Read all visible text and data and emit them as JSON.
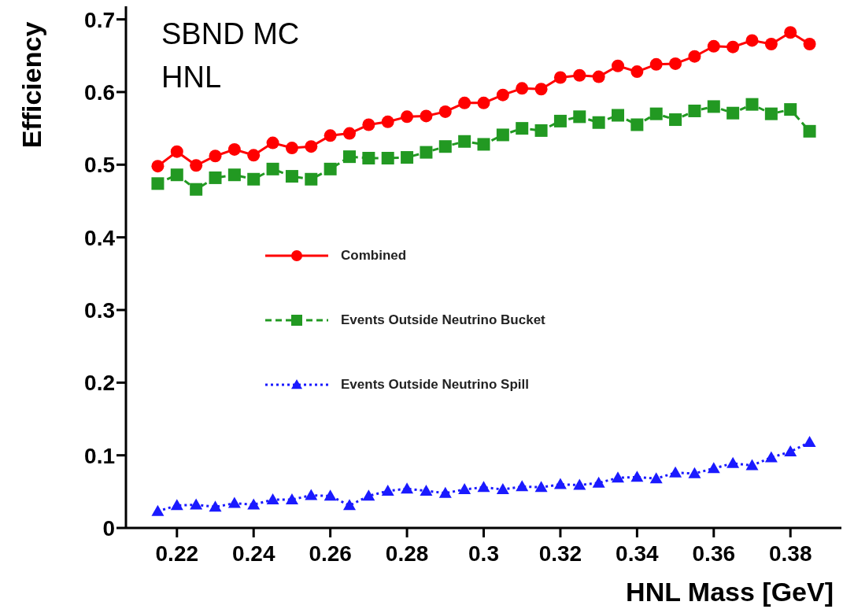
{
  "chart_data": {
    "type": "line",
    "xlabel": "HNL Mass [GeV]",
    "ylabel": "Efficiency",
    "annotations": [
      "SBND MC",
      "HNL"
    ],
    "x": [
      0.215,
      0.22,
      0.225,
      0.23,
      0.235,
      0.24,
      0.245,
      0.25,
      0.255,
      0.26,
      0.265,
      0.27,
      0.275,
      0.28,
      0.285,
      0.29,
      0.295,
      0.3,
      0.305,
      0.31,
      0.315,
      0.32,
      0.325,
      0.33,
      0.335,
      0.34,
      0.345,
      0.35,
      0.355,
      0.36,
      0.365,
      0.37,
      0.375,
      0.38,
      0.385
    ],
    "series": [
      {
        "name": "Combined",
        "color": "#ff0000",
        "marker": "circle",
        "line_style": "solid",
        "values": [
          0.498,
          0.518,
          0.499,
          0.512,
          0.521,
          0.513,
          0.53,
          0.523,
          0.525,
          0.54,
          0.543,
          0.555,
          0.559,
          0.566,
          0.567,
          0.573,
          0.585,
          0.585,
          0.596,
          0.605,
          0.604,
          0.62,
          0.623,
          0.621,
          0.636,
          0.628,
          0.638,
          0.639,
          0.649,
          0.663,
          0.662,
          0.671,
          0.666,
          0.682,
          0.666
        ]
      },
      {
        "name": "Events Outside Neutrino Bucket",
        "color": "#229922",
        "marker": "square",
        "line_style": "dashed",
        "values": [
          0.474,
          0.486,
          0.466,
          0.482,
          0.486,
          0.48,
          0.494,
          0.484,
          0.48,
          0.494,
          0.511,
          0.509,
          0.509,
          0.51,
          0.517,
          0.525,
          0.532,
          0.528,
          0.541,
          0.55,
          0.547,
          0.56,
          0.566,
          0.558,
          0.568,
          0.555,
          0.57,
          0.562,
          0.574,
          0.58,
          0.571,
          0.583,
          0.57,
          0.576,
          0.546
        ]
      },
      {
        "name": "Events Outside Neutrino Spill",
        "color": "#1a1aff",
        "marker": "triangle",
        "line_style": "dotted",
        "values": [
          0.023,
          0.031,
          0.032,
          0.029,
          0.034,
          0.032,
          0.039,
          0.039,
          0.045,
          0.044,
          0.031,
          0.044,
          0.051,
          0.054,
          0.051,
          0.048,
          0.053,
          0.056,
          0.053,
          0.057,
          0.056,
          0.06,
          0.059,
          0.062,
          0.069,
          0.07,
          0.068,
          0.076,
          0.075,
          0.082,
          0.089,
          0.086,
          0.097,
          0.105,
          0.118
        ]
      }
    ],
    "xlim": [
      0.2067,
      0.3933
    ],
    "xticks": [
      0.22,
      0.24,
      0.26,
      0.28,
      {
        "value": 0.3,
        "label": "0.3"
      },
      0.32,
      0.34,
      0.36,
      0.38
    ],
    "ylim": [
      0,
      0.718
    ],
    "yticks": [
      0,
      0.1,
      0.2,
      0.3,
      0.4,
      0.5,
      0.6,
      0.7
    ],
    "grid": false,
    "legend": "center"
  }
}
